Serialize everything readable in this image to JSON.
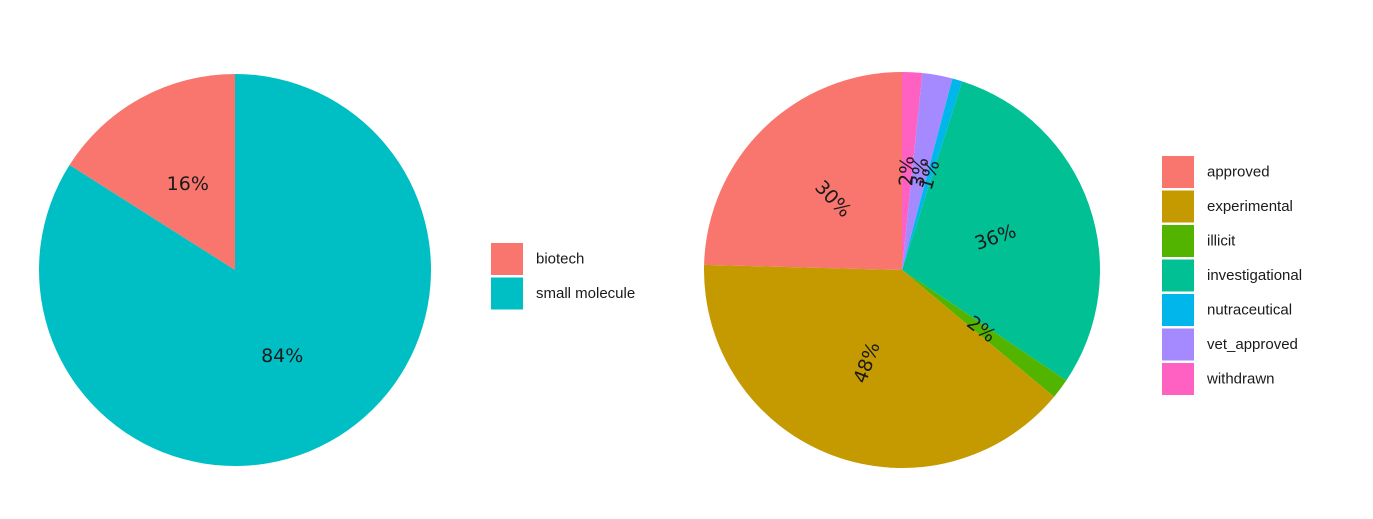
{
  "chart_data": [
    {
      "type": "pie",
      "title": "",
      "legend_position": "right",
      "slices": [
        {
          "name": "biotech",
          "value": 16,
          "label": "16%",
          "color": "#F8766D"
        },
        {
          "name": "small molecule",
          "value": 84,
          "label": "84%",
          "color": "#00BFC4"
        }
      ]
    },
    {
      "type": "pie",
      "title": "",
      "legend_position": "right",
      "slices": [
        {
          "name": "withdrawn",
          "value": 2,
          "label": "2%",
          "color": "#FF61C3"
        },
        {
          "name": "vet_approved",
          "value": 3,
          "label": "3%",
          "color": "#A58AFF"
        },
        {
          "name": "nutraceutical",
          "value": 1,
          "label": "1%",
          "color": "#00B6EB"
        },
        {
          "name": "investigational",
          "value": 36,
          "label": "36%",
          "color": "#00C094"
        },
        {
          "name": "illicit",
          "value": 2,
          "label": "2%",
          "color": "#53B400"
        },
        {
          "name": "experimental",
          "value": 48,
          "label": "48%",
          "color": "#C49A00"
        },
        {
          "name": "approved",
          "value": 30,
          "label": "30%",
          "color": "#F8766D"
        }
      ],
      "legend_order": [
        "approved",
        "experimental",
        "illicit",
        "investigational",
        "nutraceutical",
        "vet_approved",
        "withdrawn"
      ]
    }
  ]
}
